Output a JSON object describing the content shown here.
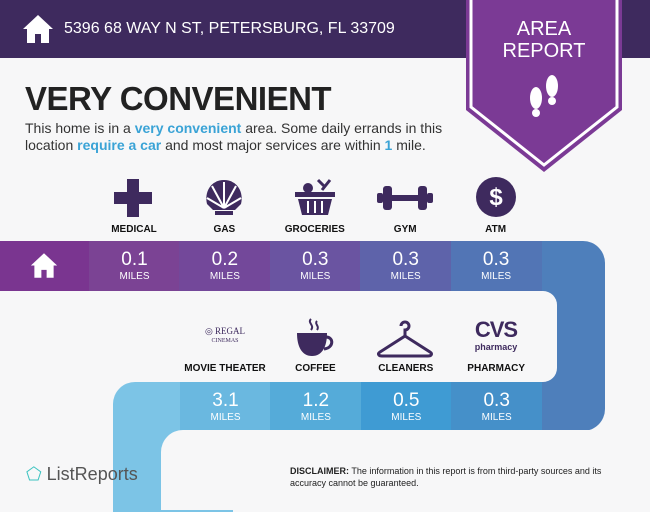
{
  "header": {
    "address": "5396 68 WAY N ST, PETERSBURG, FL 33709",
    "badge_line1": "AREA",
    "badge_line2": "REPORT"
  },
  "main": {
    "title": "VERY CONVENIENT",
    "desc": {
      "p1": "This home is in a ",
      "h1": "very convenient",
      "p2": " area. Some daily errands in this location ",
      "h2": "require a car",
      "p3": " and most major services are within ",
      "h3": "1",
      "p4": " mile."
    }
  },
  "row1": [
    {
      "label": "MEDICAL",
      "value": "0.1",
      "unit": "MILES",
      "icon": "medical-cross-icon",
      "color": "#7b4394"
    },
    {
      "label": "GAS",
      "value": "0.2",
      "unit": "MILES",
      "icon": "shell-icon",
      "color": "#73489a"
    },
    {
      "label": "GROCERIES",
      "value": "0.3",
      "unit": "MILES",
      "icon": "basket-icon",
      "color": "#6a54a1"
    },
    {
      "label": "GYM",
      "value": "0.3",
      "unit": "MILES",
      "icon": "dumbbell-icon",
      "color": "#5e63aa"
    },
    {
      "label": "ATM",
      "value": "0.3",
      "unit": "MILES",
      "icon": "dollar-icon",
      "color": "#5275b5"
    }
  ],
  "row2": [
    {
      "label": "MOVIE THEATER",
      "value": "3.1",
      "unit": "MILES",
      "icon": "regal-cinemas-logo",
      "logo_text": "REGAL CINEMAS",
      "color": "#6ab8e0"
    },
    {
      "label": "COFFEE",
      "value": "1.2",
      "unit": "MILES",
      "icon": "coffee-cup-icon",
      "color": "#55abd9"
    },
    {
      "label": "CLEANERS",
      "value": "0.5",
      "unit": "MILES",
      "icon": "hanger-icon",
      "color": "#3f9bd3"
    },
    {
      "label": "PHARMACY",
      "value": "0.3",
      "unit": "MILES",
      "icon": "cvs-pharmacy-logo",
      "logo_text": "CVS pharmacy",
      "color": "#4590c9"
    }
  ],
  "footer": {
    "brand": "ListReports",
    "disclaimer_label": "DISCLAIMER:",
    "disclaimer": " The information in this report is from third-party sources and its accuracy cannot be guaranteed."
  },
  "colors": {
    "header": "#3e2a5e",
    "badge": "#7b3a95",
    "accent": "#3aa3d6"
  }
}
